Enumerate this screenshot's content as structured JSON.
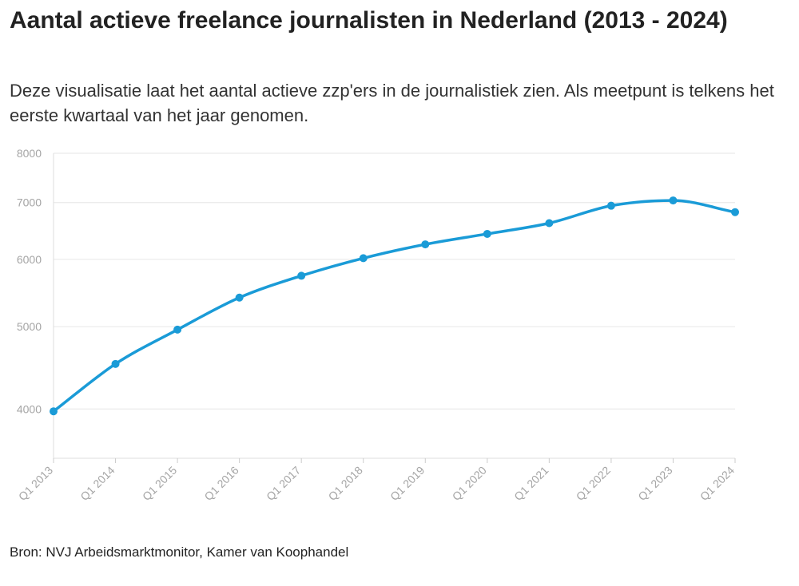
{
  "chart_data": {
    "type": "line",
    "title": "Aantal actieve freelance journalisten in Nederland (2013 - 2024)",
    "subtitle": "Deze visualisatie laat het aantal actieve zzp'ers in de journalistiek zien. Als meetpunt is telkens het eerste kwartaal van het jaar genomen.",
    "source": "Bron: NVJ Arbeidsmarktmonitor, Kamer van Koophandel",
    "xlabel": "",
    "ylabel": "",
    "scale": "log",
    "ylim": [
      3500,
      8000
    ],
    "yticks": [
      4000,
      5000,
      6000,
      7000,
      8000
    ],
    "grid": true,
    "categories": [
      "Q1 2013",
      "Q1 2014",
      "Q1 2015",
      "Q1 2016",
      "Q1 2017",
      "Q1 2018",
      "Q1 2019",
      "Q1 2020",
      "Q1 2021",
      "Q1 2022",
      "Q1 2023",
      "Q1 2024"
    ],
    "series": [
      {
        "name": "Actieve freelance journalisten",
        "color": "#1a9bd7",
        "values": [
          3975,
          4520,
          4960,
          5410,
          5740,
          6020,
          6250,
          6430,
          6620,
          6940,
          7040,
          6820
        ]
      }
    ]
  }
}
